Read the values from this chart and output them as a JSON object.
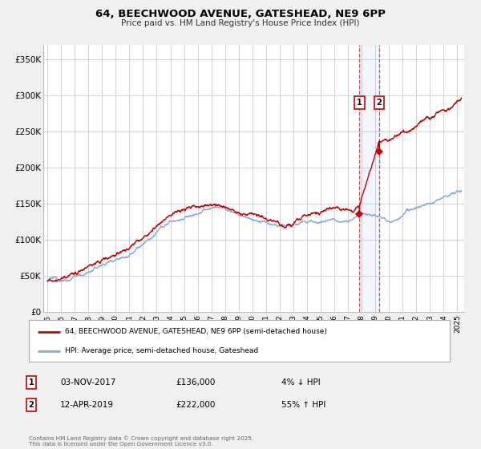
{
  "title": "64, BEECHWOOD AVENUE, GATESHEAD, NE9 6PP",
  "subtitle": "Price paid vs. HM Land Registry's House Price Index (HPI)",
  "ylim": [
    0,
    370000
  ],
  "xlim_start": 1994.7,
  "xlim_end": 2025.5,
  "property_color": "#cc0000",
  "hpi_color": "#88aadd",
  "marker1_date": 2017.84,
  "marker1_value": 136000,
  "marker2_date": 2019.28,
  "marker2_value": 222000,
  "marker1_label": "1",
  "marker2_label": "2",
  "marker1_text": "03-NOV-2017",
  "marker1_price": "£136,000",
  "marker1_hpi": "4% ↓ HPI",
  "marker2_text": "12-APR-2019",
  "marker2_price": "£222,000",
  "marker2_hpi": "55% ↑ HPI",
  "legend1": "64, BEECHWOOD AVENUE, GATESHEAD, NE9 6PP (semi-detached house)",
  "legend2": "HPI: Average price, semi-detached house, Gateshead",
  "footnote": "Contains HM Land Registry data © Crown copyright and database right 2025.\nThis data is licensed under the Open Government Licence v3.0.",
  "background_color": "#f0f0f0",
  "plot_bg_color": "#ffffff",
  "grid_color": "#cccccc",
  "ytick_labels": [
    "£0",
    "£50K",
    "£100K",
    "£150K",
    "£200K",
    "£250K",
    "£300K",
    "£350K"
  ],
  "ytick_values": [
    0,
    50000,
    100000,
    150000,
    200000,
    250000,
    300000,
    350000
  ]
}
